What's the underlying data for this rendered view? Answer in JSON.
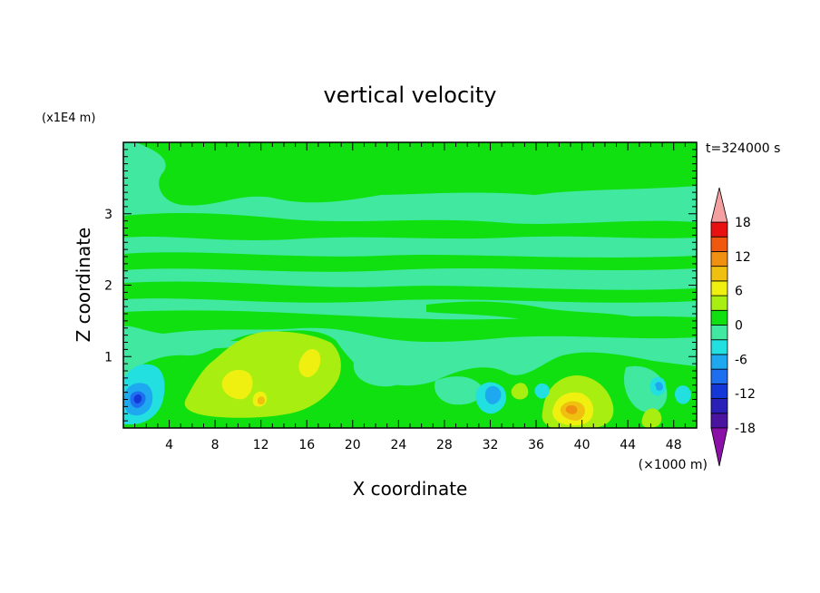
{
  "chart_data": {
    "type": "heatmap",
    "title": "vertical velocity",
    "xlabel": "X coordinate",
    "ylabel": "Z coordinate",
    "x_unit": "(×1000 m)",
    "y_unit": "(x1E4 m)",
    "time_label": "t=324000 s",
    "xlim": [
      0,
      50
    ],
    "ylim": [
      0,
      4
    ],
    "x_ticks": [
      4,
      8,
      12,
      16,
      20,
      24,
      28,
      32,
      36,
      40,
      44,
      48
    ],
    "y_ticks": [
      1,
      2,
      3
    ],
    "colorbar": {
      "levels": [
        -21,
        -18,
        -15,
        -12,
        -9,
        -6,
        -3,
        0,
        3,
        6,
        9,
        12,
        15,
        18,
        21
      ],
      "tick_labels": [
        "18",
        "12",
        "6",
        "0",
        "-6",
        "-12",
        "-18"
      ],
      "colors": [
        "#8a10a8",
        "#4a14a0",
        "#2a20b8",
        "#1438d8",
        "#1e6ef0",
        "#1ea8f0",
        "#22e0e0",
        "#40e8a0",
        "#10e010",
        "#a8ee10",
        "#f0f010",
        "#f0c010",
        "#f09010",
        "#f05810",
        "#e81010",
        "#f4a0a0"
      ],
      "extend": "both"
    },
    "background_value": 1,
    "features": [
      {
        "x": 40,
        "z": 0.6,
        "value": 3
      },
      {
        "x": 15,
        "z": 3.6,
        "value": -3
      },
      {
        "x": 12,
        "z": 0.65,
        "value": 6
      },
      {
        "x": 11,
        "z": 0.4,
        "value": 9
      },
      {
        "x": 16,
        "z": 0.9,
        "value": 9
      },
      {
        "x": 23,
        "z": 0.55,
        "value": 3
      },
      {
        "x": 3.5,
        "z": 0.4,
        "value": -6
      },
      {
        "x": 2.2,
        "z": 0.38,
        "value": -12
      },
      {
        "x": 20,
        "z": 0.9,
        "value": -3
      },
      {
        "x": 31,
        "z": 0.25,
        "value": -6
      },
      {
        "x": 32.5,
        "z": 0.4,
        "value": -9
      },
      {
        "x": 35,
        "z": 0.5,
        "value": 6
      },
      {
        "x": 38.5,
        "z": 0.3,
        "value": 9
      },
      {
        "x": 39,
        "z": 0.3,
        "value": 15
      },
      {
        "x": 44,
        "z": 0.6,
        "value": -3
      },
      {
        "x": 46.3,
        "z": 0.5,
        "value": -9
      },
      {
        "x": 46,
        "z": 0.12,
        "value": 6
      },
      {
        "x": 48.5,
        "z": 0.4,
        "value": -6
      },
      {
        "x": 49.8,
        "z": 0.6,
        "value": 6
      }
    ]
  }
}
